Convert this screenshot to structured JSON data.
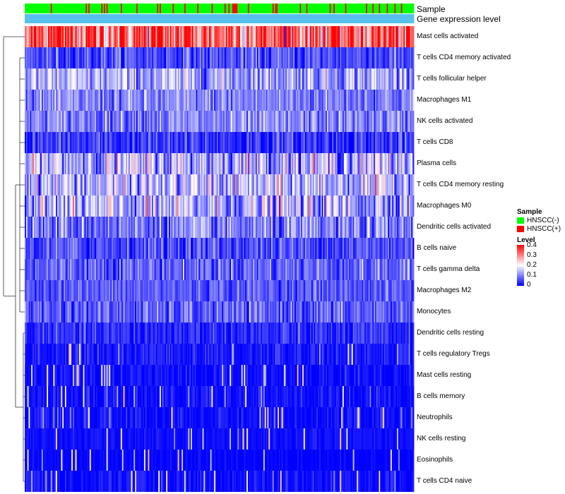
{
  "chart_data": {
    "type": "heatmap",
    "title": "",
    "annotations": [
      {
        "name": "Sample",
        "type": "categorical"
      },
      {
        "name": "Gene expression level",
        "type": "constant"
      }
    ],
    "rows": [
      "Mast cells activated",
      "T cells CD4 memory activated",
      "T cells follicular helper",
      "Macrophages M1",
      "NK cells activated",
      "T cells CD8",
      "Plasma cells",
      "T cells CD4 memory resting",
      "Macrophages M0",
      "Dendritic cells activated",
      "B cells naive",
      "T cells gamma delta",
      "Macrophages M2",
      "Monocytes",
      "Dendritic cells resting",
      "T cells regulatory  Tregs",
      "Mast cells resting",
      "B cells memory",
      "Neutrophils",
      "NK cells resting",
      "Eosinophils",
      "T cells CD4 naive"
    ],
    "row_mean_levels": [
      0.33,
      0.06,
      0.13,
      0.1,
      0.1,
      0.04,
      0.14,
      0.14,
      0.13,
      0.09,
      0.06,
      0.08,
      0.07,
      0.07,
      0.03,
      0.02,
      0.01,
      0.01,
      0.01,
      0.01,
      0.0,
      0.01
    ],
    "row_variability": [
      0.09,
      0.04,
      0.05,
      0.04,
      0.04,
      0.04,
      0.07,
      0.06,
      0.07,
      0.05,
      0.04,
      0.04,
      0.03,
      0.04,
      0.03,
      0.02,
      0.02,
      0.02,
      0.02,
      0.01,
      0.01,
      0.02
    ],
    "n_samples": 300,
    "sample_groups": {
      "HNSCC(-)": 0.86,
      "HNSCC(+)": 0.14
    },
    "legend": {
      "sample": {
        "title": "Sample",
        "items": [
          {
            "label": "HNSCC(-)",
            "color": "#00ff00"
          },
          {
            "label": "HNSCC(+)",
            "color": "#ff0000"
          }
        ]
      },
      "level": {
        "title": "Level",
        "range": [
          0,
          0.4
        ],
        "ticks": [
          "0.4",
          "0.3",
          "0.2",
          "0.1",
          "0"
        ],
        "colors": {
          "low": "#0000ff",
          "mid": "#ffffff",
          "high": "#ff0000"
        }
      }
    },
    "colors": {
      "annotation_expression": "#55c1ec"
    }
  }
}
